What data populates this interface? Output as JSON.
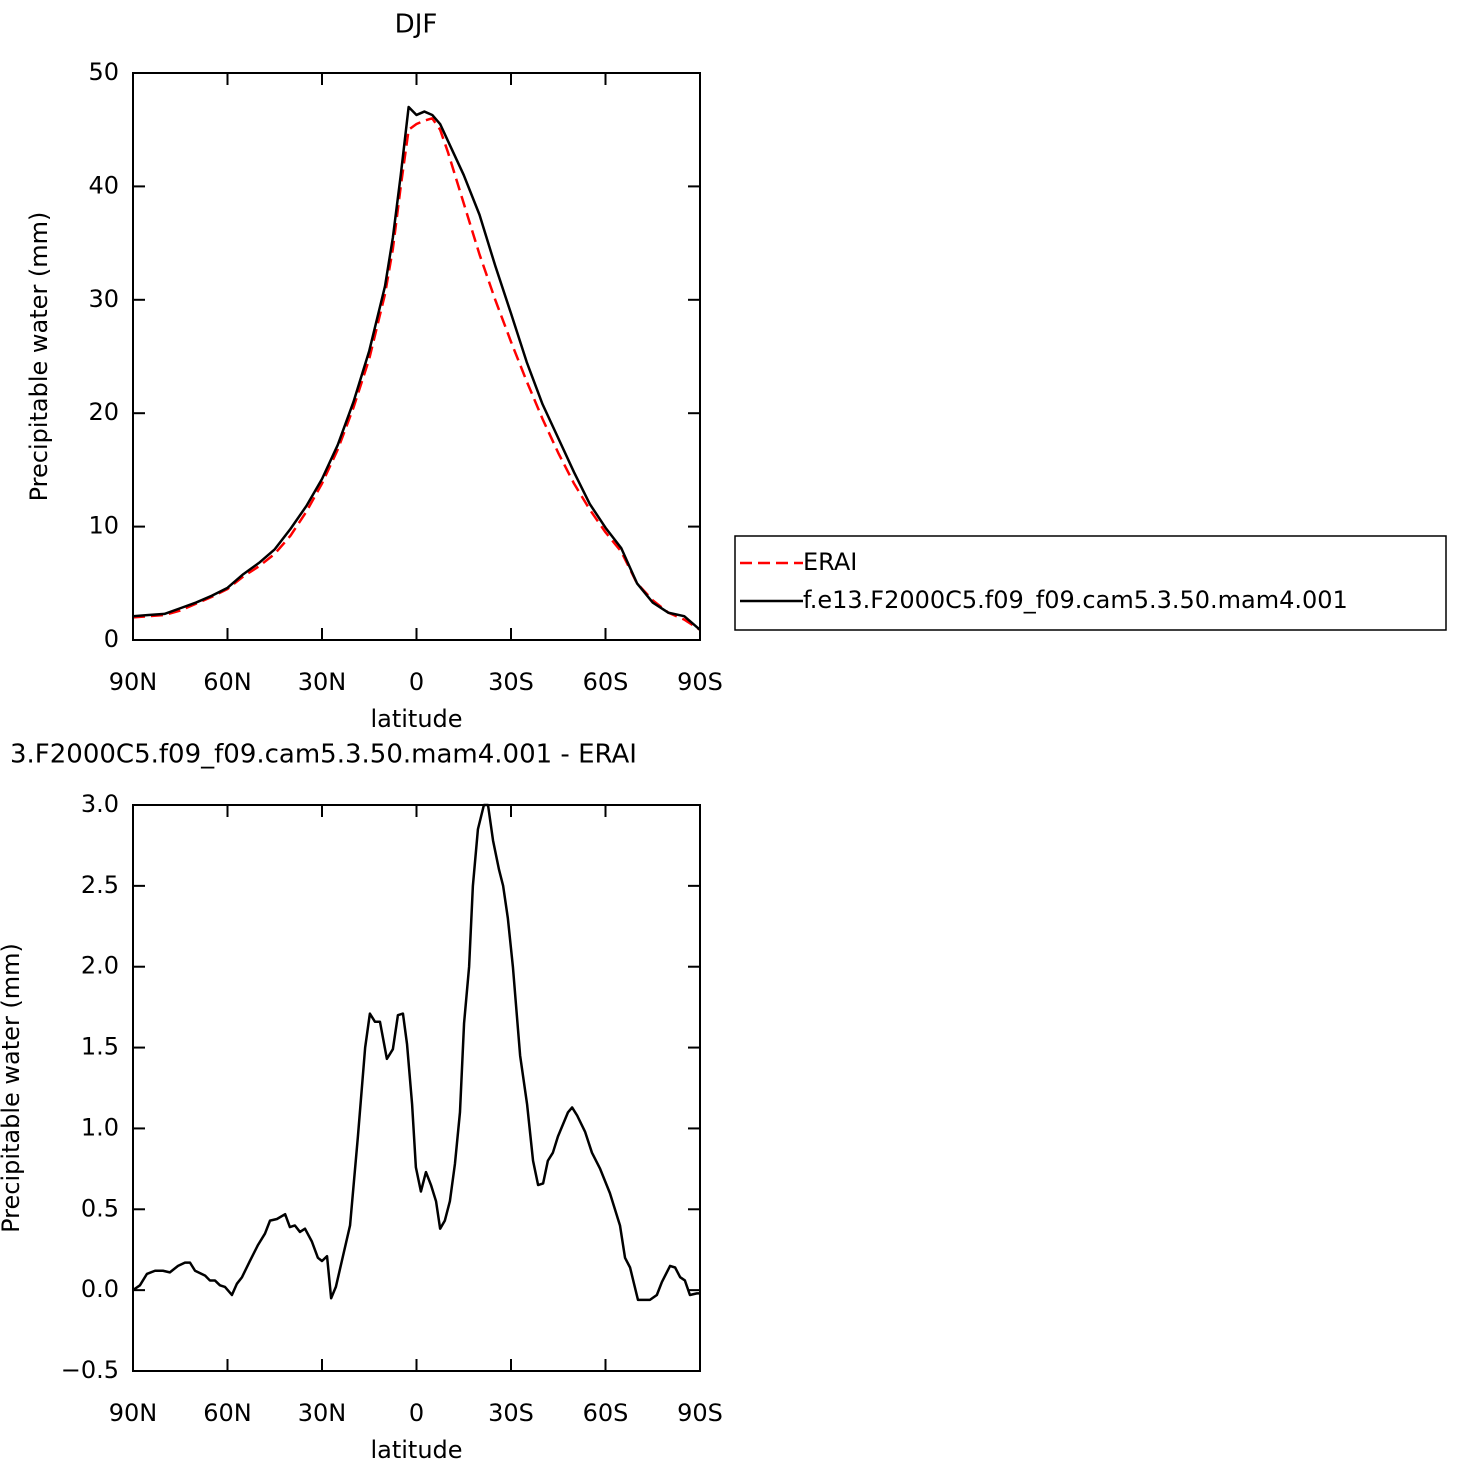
{
  "chart_data": [
    {
      "type": "line",
      "title": "DJF",
      "ylabel": "Precipitable water (mm)",
      "xlabel": "latitude",
      "x": [
        90,
        85,
        80,
        75,
        70,
        65,
        60,
        55,
        50,
        45,
        40,
        35,
        30,
        25,
        20,
        15,
        10,
        7.5,
        5,
        2.5,
        0,
        -2.5,
        -5,
        -7.5,
        -10,
        -15,
        -20,
        -25,
        -30,
        -35,
        -40,
        -45,
        -50,
        -55,
        -60,
        -65,
        -70,
        -75,
        -80,
        -85,
        -90
      ],
      "series": [
        {
          "name": "ERAI",
          "color": "#ff0000",
          "linestyle": "dashed",
          "values": [
            2,
            2.1,
            2.2,
            2.6,
            3.2,
            3.8,
            4.5,
            5.6,
            6.5,
            7.6,
            9.2,
            11.3,
            13.8,
            16.8,
            20.5,
            24.8,
            30.5,
            34.5,
            40,
            45,
            45.5,
            45.8,
            46,
            45,
            43,
            38.5,
            34,
            30,
            26.3,
            22.8,
            19.5,
            16.5,
            13.8,
            11.5,
            9.5,
            7.8,
            5,
            3.5,
            2.4,
            1.8,
            0.9
          ]
        },
        {
          "name": "f.e13.F2000C5.f09_f09.cam5.3.50.mam4.001",
          "color": "#000000",
          "linestyle": "solid",
          "values": [
            2.1,
            2.2,
            2.3,
            2.8,
            3.3,
            3.9,
            4.6,
            5.8,
            6.8,
            8,
            9.8,
            11.8,
            14.2,
            17.2,
            21,
            25.5,
            31.2,
            35.5,
            41,
            47,
            46.3,
            46.6,
            46.3,
            45.5,
            44,
            41,
            37.5,
            33,
            28.8,
            24.5,
            20.8,
            17.8,
            14.8,
            12,
            9.9,
            8.1,
            5,
            3.3,
            2.4,
            2.1,
            0.9
          ]
        }
      ],
      "xlim": [
        90,
        -90
      ],
      "xticks": [
        {
          "value": 90,
          "label": "90N"
        },
        {
          "value": 60,
          "label": "60N"
        },
        {
          "value": 30,
          "label": "30N"
        },
        0,
        {
          "value": -30,
          "label": "30S"
        },
        {
          "value": -60,
          "label": "60S"
        },
        {
          "value": -90,
          "label": "90S"
        }
      ],
      "ylim": [
        0,
        50
      ],
      "yticks": [
        0,
        10,
        20,
        30,
        40,
        50
      ],
      "legend": "right"
    },
    {
      "type": "line",
      "title": "3.F2000C5.f09_f09.cam5.3.50.mam4.001 - ERAI",
      "ylabel": "Precipitable water (mm)",
      "xlabel": "latitude",
      "x": [
        90,
        87.8,
        85.6,
        83,
        80.5,
        78.3,
        75.7,
        73.5,
        71.9,
        70.3,
        67.1,
        65.6,
        64,
        62.4,
        60.8,
        58.6,
        57,
        55.4,
        52.9,
        50.3,
        48.1,
        46.5,
        44.3,
        41.7,
        40.2,
        38.6,
        37,
        35.4,
        33.2,
        31.3,
        30,
        28.4,
        27.1,
        25.6,
        23.7,
        21.1,
        18.6,
        16.3,
        14.8,
        13.2,
        11.6,
        9.4,
        7.5,
        5.9,
        4.3,
        3,
        1.4,
        0.2,
        -1.4,
        -3,
        -4.6,
        -6.2,
        -7.5,
        -9,
        -10.6,
        -12.2,
        -13.8,
        -15.1,
        -16.7,
        -17.9,
        -19.5,
        -21.4,
        -22.7,
        -24.3,
        -26.2,
        -27.5,
        -29,
        -30.6,
        -32.9,
        -35.1,
        -37,
        -38.6,
        -40.2,
        -41.7,
        -43.3,
        -44.9,
        -48.1,
        -49.4,
        -51,
        -53.5,
        -55.7,
        -58.3,
        -61.4,
        -64.6,
        -66.2,
        -67.8,
        -70.3,
        -72.5,
        -74.1,
        -76.3,
        -77.9,
        -80.5,
        -82.1,
        -83.7,
        -85.2,
        -86.8,
        -89,
        -90
      ],
      "series": [
        {
          "color": "#000000",
          "linestyle": "solid",
          "values": [
            0,
            0.03,
            0.1,
            0.12,
            0.12,
            0.11,
            0.15,
            0.17,
            0.17,
            0.12,
            0.09,
            0.06,
            0.06,
            0.03,
            0.02,
            -0.03,
            0.04,
            0.08,
            0.18,
            0.28,
            0.35,
            0.43,
            0.44,
            0.47,
            0.39,
            0.4,
            0.36,
            0.38,
            0.3,
            0.2,
            0.18,
            0.21,
            -0.05,
            0.02,
            0.18,
            0.4,
            0.95,
            1.5,
            1.71,
            1.66,
            1.66,
            1.43,
            1.49,
            1.7,
            1.71,
            1.52,
            1.15,
            0.76,
            0.61,
            0.73,
            0.65,
            0.55,
            0.38,
            0.43,
            0.55,
            0.78,
            1.1,
            1.65,
            2,
            2.5,
            2.85,
            3,
            3,
            2.78,
            2.6,
            2.5,
            2.3,
            2,
            1.45,
            1.15,
            0.8,
            0.65,
            0.66,
            0.8,
            0.85,
            0.95,
            1.1,
            1.13,
            1.08,
            0.98,
            0.85,
            0.75,
            0.6,
            0.4,
            0.2,
            0.14,
            -0.06,
            -0.06,
            -0.06,
            -0.03,
            0.05,
            0.15,
            0.14,
            0.08,
            0.06,
            -0.03,
            -0.02,
            -0.02
          ]
        }
      ],
      "xlim": [
        90,
        -90
      ],
      "xticks": [
        {
          "value": 90,
          "label": "90N"
        },
        {
          "value": 60,
          "label": "60N"
        },
        {
          "value": 30,
          "label": "30N"
        },
        0,
        {
          "value": -30,
          "label": "30S"
        },
        {
          "value": -60,
          "label": "60S"
        },
        {
          "value": -90,
          "label": "90S"
        }
      ],
      "ylim": [
        -0.5,
        3
      ],
      "yticks": [
        {
          "value": -0.5,
          "label": "−0.5"
        },
        {
          "value": 0,
          "label": "0.0"
        },
        {
          "value": 0.5,
          "label": "0.5"
        },
        {
          "value": 1,
          "label": "1.0"
        },
        {
          "value": 1.5,
          "label": "1.5"
        },
        {
          "value": 2,
          "label": "2.0"
        },
        {
          "value": 2.5,
          "label": "2.5"
        },
        {
          "value": 3,
          "label": "3.0"
        }
      ]
    }
  ]
}
